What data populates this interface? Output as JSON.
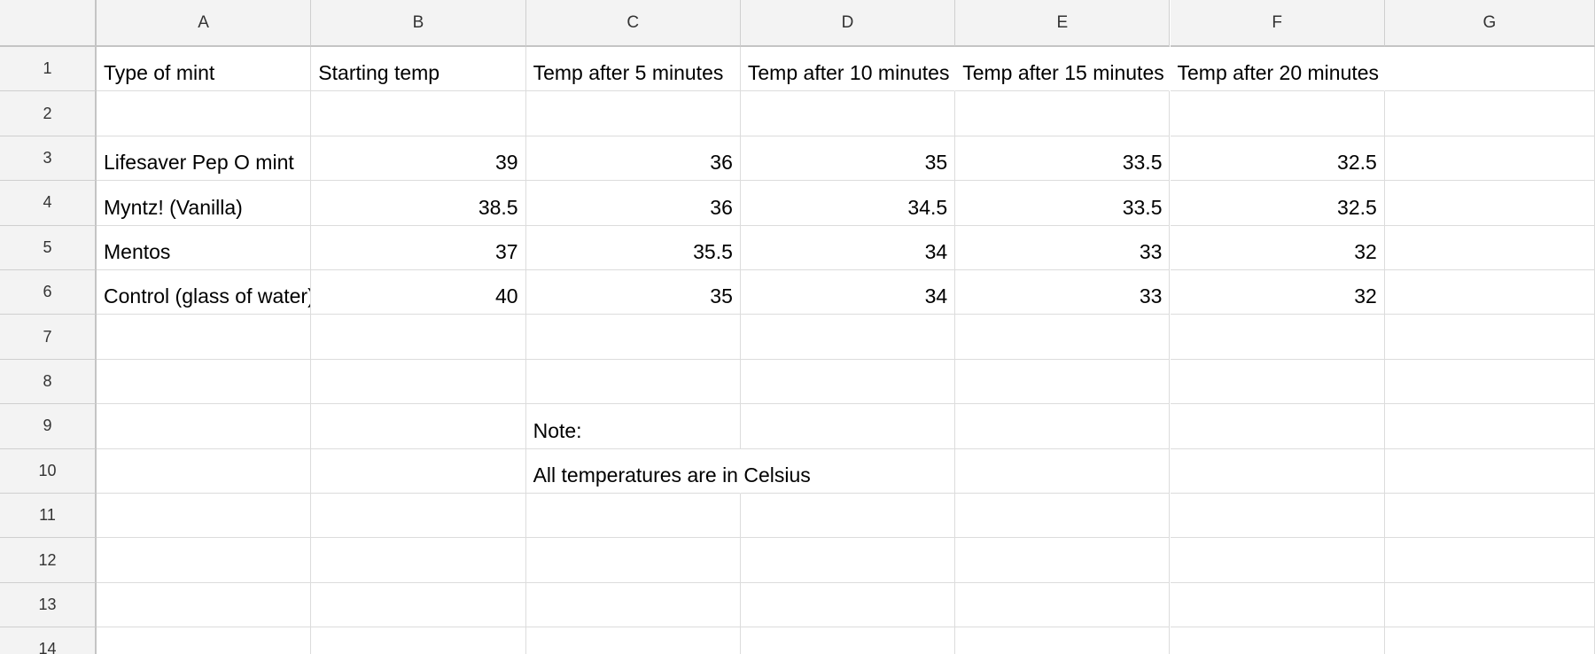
{
  "columns": [
    "A",
    "B",
    "C",
    "D",
    "E",
    "F",
    "G"
  ],
  "rows": [
    "1",
    "2",
    "3",
    "4",
    "5",
    "6",
    "7",
    "8",
    "9",
    "10",
    "11",
    "12",
    "13",
    "14"
  ],
  "cells": {
    "A1": "Type of mint",
    "B1": "Starting temp",
    "C1": "Temp after 5 minutes",
    "D1": "Temp after 10 minutes",
    "E1": "Temp after 15 minutes",
    "F1": "Temp after 20 minutes",
    "A3": "Lifesaver Pep O mint",
    "B3": "39",
    "C3": "36",
    "D3": "35",
    "E3": "33.5",
    "F3": "32.5",
    "A4": "Myntz! (Vanilla)",
    "B4": "38.5",
    "C4": "36",
    "D4": "34.5",
    "E4": "33.5",
    "F4": "32.5",
    "A5": "Mentos",
    "B5": "37",
    "C5": "35.5",
    "D5": "34",
    "E5": "33",
    "F5": "32",
    "A6": "Control (glass of water)",
    "B6": "40",
    "C6": "35",
    "D6": "34",
    "E6": "33",
    "F6": "32",
    "C9": "Note:",
    "C10": "All temperatures are in Celsius"
  },
  "numeric_cells": [
    "B3",
    "C3",
    "D3",
    "E3",
    "F3",
    "B4",
    "C4",
    "D4",
    "E4",
    "F4",
    "B5",
    "C5",
    "D5",
    "E5",
    "F5",
    "B6",
    "C6",
    "D6",
    "E6",
    "F6"
  ],
  "overflow_cells": [
    "D1",
    "E1",
    "F1",
    "C10"
  ],
  "colors": {
    "header_bg": "#f3f3f3",
    "grid_line": "#dcdcdc"
  }
}
